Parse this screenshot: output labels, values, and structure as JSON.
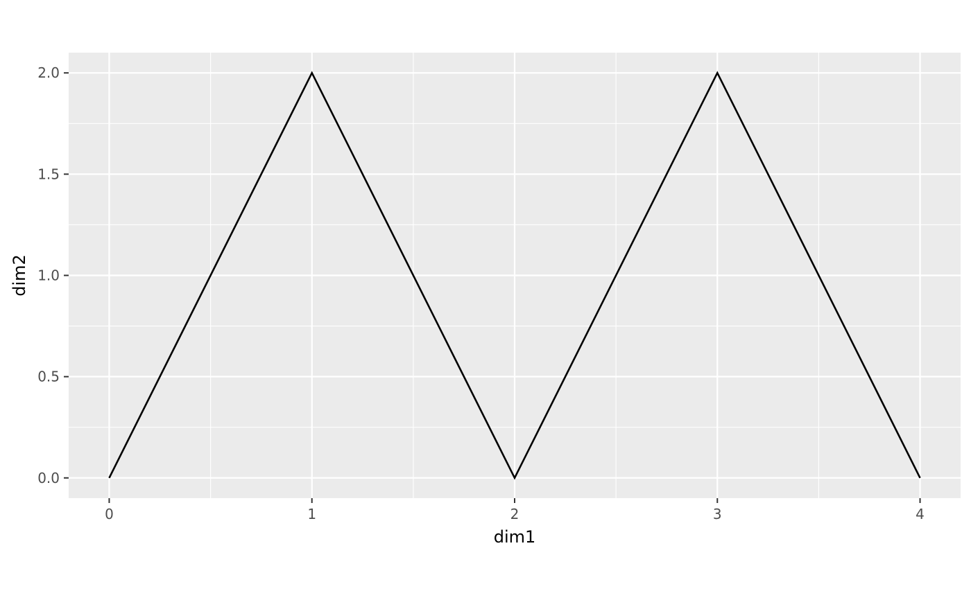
{
  "chart_data": {
    "type": "line",
    "title": "",
    "xlabel": "dim1",
    "ylabel": "dim2",
    "xlim": [
      -0.2,
      4.2
    ],
    "ylim": [
      -0.1,
      2.1
    ],
    "x_ticks": [
      0,
      1,
      2,
      3,
      4
    ],
    "x_tick_labels": [
      "0",
      "1",
      "2",
      "3",
      "4"
    ],
    "x_minor_ticks": [
      0.5,
      1.5,
      2.5,
      3.5
    ],
    "y_ticks": [
      0,
      0.5,
      1,
      1.5,
      2
    ],
    "y_tick_labels": [
      "0.0",
      "0.5",
      "1.0",
      "1.5",
      "2.0"
    ],
    "y_minor_ticks": [
      0.25,
      0.75,
      1.25,
      1.75
    ],
    "grid": true,
    "legend": "none",
    "series": [
      {
        "x": [
          0,
          1,
          2,
          3,
          4
        ],
        "y": [
          0,
          2,
          0,
          2,
          0
        ]
      }
    ],
    "colors": {
      "panel_background": "#ebebeb",
      "grid_line": "#ffffff",
      "line": "#000000",
      "tick_label": "#4d4d4d",
      "axis_tick": "#333333"
    }
  }
}
